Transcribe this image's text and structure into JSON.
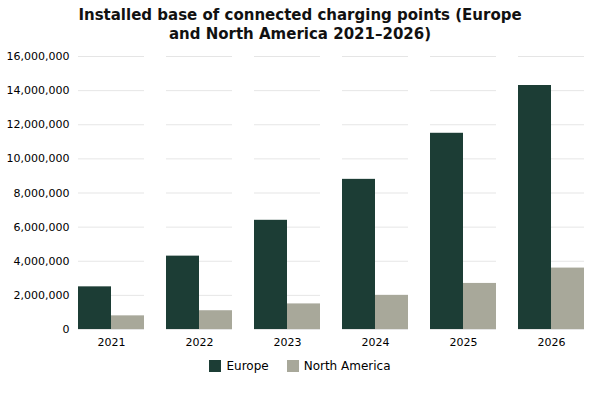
{
  "chart_data": {
    "type": "bar",
    "title": "Installed base of connected charging points (Europe\nand North America 2021–2026)",
    "categories": [
      "2021",
      "2022",
      "2023",
      "2024",
      "2025",
      "2026"
    ],
    "series": [
      {
        "name": "Europe",
        "color": "#1c3d35",
        "values": [
          2500000,
          4300000,
          6400000,
          8800000,
          11500000,
          14300000
        ]
      },
      {
        "name": "North America",
        "color": "#a8a89a",
        "values": [
          800000,
          1100000,
          1500000,
          2000000,
          2700000,
          3600000
        ]
      }
    ],
    "ylim": [
      0,
      16000000
    ],
    "yticks": [
      0,
      {
        "value": 2000000,
        "label": "2,000,000"
      },
      {
        "value": 4000000,
        "label": "4,000,000"
      },
      {
        "value": 6000000,
        "label": "6,000,000"
      },
      {
        "value": 8000000,
        "label": "8,000,000"
      },
      {
        "value": 10000000,
        "label": "10,000,000"
      },
      {
        "value": 12000000,
        "label": "12,000,000"
      },
      {
        "value": 14000000,
        "label": "14,000,000"
      },
      {
        "value": 16000000,
        "label": "16,000,000"
      }
    ],
    "grid": true,
    "legend": "bottom"
  }
}
